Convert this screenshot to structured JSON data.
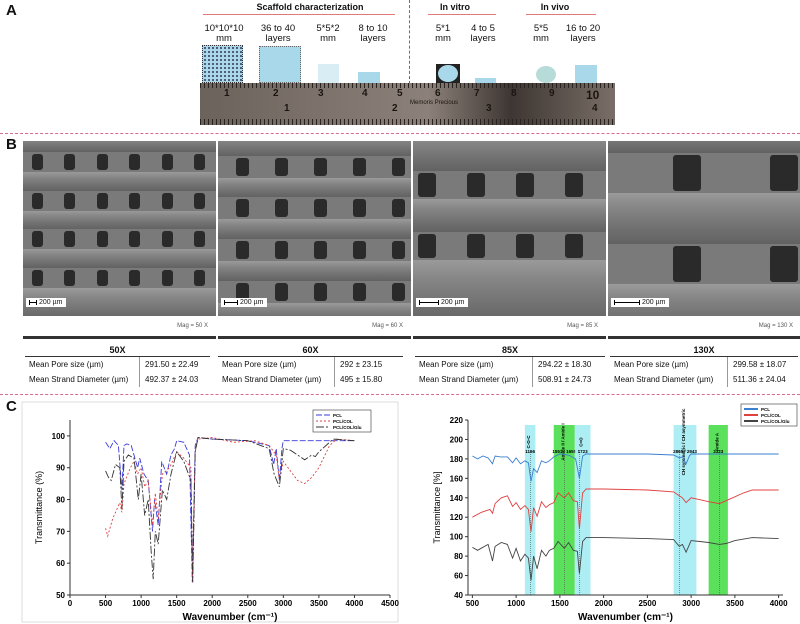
{
  "panels": {
    "a": "A",
    "b": "B",
    "c": "C"
  },
  "panel_a": {
    "groups": [
      {
        "title": "Scaffold characterization"
      },
      {
        "title": "In vitro"
      },
      {
        "title": "In vivo"
      }
    ],
    "scaffold_labels": [
      {
        "line1": "10*10*10",
        "line2": "mm"
      },
      {
        "line1": "36 to 40",
        "line2": "layers"
      },
      {
        "line1": "5*5*2",
        "line2": "mm"
      },
      {
        "line1": "8 to 10",
        "line2": "layers"
      },
      {
        "line1": "5*1",
        "line2": "mm"
      },
      {
        "line1": "4 to 5",
        "line2": "layers"
      },
      {
        "line1": "5*5",
        "line2": "mm"
      },
      {
        "line1": "16 to 20",
        "line2": "layers"
      }
    ],
    "ruler_cm": [
      "1",
      "2",
      "3",
      "4",
      "5",
      "6",
      "7",
      "8",
      "9",
      "10"
    ],
    "ruler_inch": [
      "1",
      "2",
      "3",
      "4"
    ],
    "ruler_brand": "Memoris Precious"
  },
  "panel_b": {
    "images": [
      {
        "mag": "50X",
        "scale": "200 µm",
        "info": "Mag = 50 X"
      },
      {
        "mag": "60X",
        "scale": "200 µm",
        "info": "Mag = 60 X"
      },
      {
        "mag": "85X",
        "scale": "200 µm",
        "info": "Mag = 85 X"
      },
      {
        "mag": "130X",
        "scale": "200 µm",
        "info": "Mag = 130 X"
      }
    ],
    "row_labels": {
      "pore": "Mean Pore size (µm)",
      "strand": "Mean Strand Diameter (µm)"
    },
    "tables": [
      {
        "title": "50X",
        "pore": "291.50 ± 22.49",
        "strand": "492.37 ± 24.03"
      },
      {
        "title": "60X",
        "pore": "292 ± 23.15",
        "strand": "495 ± 15.80"
      },
      {
        "title": "85X",
        "pore": "294.22 ± 18.30",
        "strand": "508.91 ± 24.73"
      },
      {
        "title": "130X",
        "pore": "299.58 ± 18.07",
        "strand": "511.36 ± 24.04"
      }
    ]
  },
  "chart_data": [
    {
      "type": "line",
      "title": "",
      "xlabel": "Wavenumber (cm⁻¹)",
      "ylabel": "Transmittance (%)",
      "xlim": [
        0,
        4500
      ],
      "ylim": [
        50,
        105
      ],
      "xticks": [
        0,
        500,
        1000,
        1500,
        2000,
        2500,
        3000,
        3500,
        4000,
        4500
      ],
      "yticks": [
        50,
        60,
        70,
        80,
        90,
        100
      ],
      "legend": "top-right",
      "series": [
        {
          "name": "PCL",
          "color": "#3a3ad8",
          "dash": "6,2",
          "x": [
            500,
            560,
            620,
            680,
            730,
            760,
            800,
            860,
            900,
            950,
            980,
            1040,
            1100,
            1160,
            1190,
            1240,
            1290,
            1360,
            1420,
            1470,
            1500,
            1600,
            1680,
            1720,
            1760,
            1800,
            2000,
            2500,
            2800,
            2865,
            2900,
            2945,
            2980,
            3000,
            3500,
            4000
          ],
          "y": [
            98,
            96,
            98.5,
            97,
            83,
            97,
            97.5,
            97,
            94,
            90,
            93,
            88,
            86,
            70,
            80,
            72,
            92,
            88,
            94,
            96,
            98.5,
            98,
            94,
            54,
            97,
            99.5,
            99,
            98.5,
            97,
            91,
            96,
            86,
            96,
            98.5,
            98.5,
            98.5
          ]
        },
        {
          "name": "PCL/COL",
          "color": "#e04040",
          "dash": "2,2",
          "x": [
            500,
            530,
            600,
            700,
            730,
            760,
            850,
            900,
            950,
            1000,
            1050,
            1100,
            1160,
            1200,
            1240,
            1300,
            1400,
            1500,
            1600,
            1700,
            1725,
            1760,
            1800,
            2000,
            2300,
            2600,
            2800,
            2900,
            2945,
            3000,
            3100,
            3200,
            3300,
            3400,
            3500,
            3650,
            3750,
            4000
          ],
          "y": [
            71,
            68.5,
            74,
            79,
            76,
            85,
            90,
            92,
            88,
            90,
            84,
            86,
            72,
            82,
            74,
            88,
            90,
            95,
            93,
            90,
            54,
            95,
            99,
            99.5,
            98,
            98.5,
            97,
            94,
            86,
            92,
            89,
            86,
            85,
            87,
            90,
            97,
            99,
            98.5
          ]
        },
        {
          "name": "PCL/COL/Glu",
          "color": "#333333",
          "dash": "8,2,2,2",
          "x": [
            500,
            540,
            580,
            640,
            700,
            730,
            760,
            820,
            900,
            960,
            1000,
            1050,
            1100,
            1140,
            1170,
            1200,
            1240,
            1300,
            1360,
            1420,
            1500,
            1600,
            1700,
            1725,
            1760,
            1800,
            2000,
            2500,
            2800,
            2870,
            2945,
            3000,
            3100,
            3200,
            3300,
            3400,
            3450,
            3500,
            3600,
            3700,
            4000
          ],
          "y": [
            89,
            87,
            86,
            91,
            90,
            77,
            92,
            94,
            93,
            80,
            88,
            75,
            80,
            64,
            55,
            70,
            66,
            83,
            80,
            88,
            95,
            92,
            86,
            54,
            95,
            99.5,
            99,
            98.5,
            96,
            88,
            84,
            96,
            95.5,
            94,
            92.5,
            94,
            93.5,
            95,
            97,
            99,
            98.5
          ]
        }
      ]
    },
    {
      "type": "line",
      "title": "",
      "xlabel": "Wavenumber (cm⁻¹)",
      "ylabel": "Transmittance [%]",
      "xlim": [
        450,
        4050
      ],
      "ylim": [
        40,
        220
      ],
      "xticks": [
        500,
        1000,
        1500,
        2000,
        2500,
        3000,
        3500,
        4000
      ],
      "yticks": [
        40,
        60,
        80,
        100,
        120,
        140,
        160,
        180,
        200,
        220
      ],
      "legend": "top-right",
      "bands": [
        {
          "from": 1100,
          "to": 1220,
          "color": "#9feaf2",
          "label": "C-O-C",
          "peak": "1166",
          "peak_x": 1166
        },
        {
          "from": 1430,
          "to": 1670,
          "color": "#3ddb3d",
          "label": "Amide II / Amide I",
          "peak": "1551 / 1655",
          "peak_x": 1551
        },
        {
          "from": 1670,
          "to": 1850,
          "color": "#9feaf2",
          "label": "C=O",
          "peak": "1723",
          "peak_x": 1723
        },
        {
          "from": 2800,
          "to": 3060,
          "color": "#9feaf2",
          "label": "CH symmetric / CH asymmetric",
          "peak": "2865 / 2943",
          "peak_x": 2865
        },
        {
          "from": 3200,
          "to": 3420,
          "color": "#3ddb3d",
          "label": "Amide A",
          "peak": "3323",
          "peak_x": 3323
        }
      ],
      "annotations": [
        "C-O-C",
        "1166",
        "Amide II",
        "Amide I",
        "1551",
        "1655",
        "C=O",
        "1723",
        "CH symmetric",
        "CH asymmetric",
        "2865",
        "2943",
        "Amide A",
        "3323"
      ],
      "series": [
        {
          "name": "PCL",
          "color": "#3a7fd0",
          "x": [
            500,
            560,
            620,
            680,
            730,
            760,
            820,
            900,
            960,
            1000,
            1050,
            1100,
            1140,
            1170,
            1200,
            1240,
            1290,
            1340,
            1380,
            1430,
            1500,
            1600,
            1680,
            1723,
            1760,
            1800,
            2000,
            2500,
            2800,
            2865,
            2900,
            2943,
            2980,
            3000,
            3500,
            4000
          ],
          "y": [
            183,
            180,
            183,
            181,
            175,
            183,
            182,
            182,
            176,
            181,
            175,
            178,
            176,
            157,
            170,
            166,
            178,
            176,
            178,
            182,
            185,
            184,
            180,
            160,
            183,
            185,
            185,
            185,
            184,
            181,
            182,
            175,
            183,
            185,
            185,
            185
          ]
        },
        {
          "name": "PCL/COL",
          "color": "#e04040",
          "x": [
            500,
            600,
            700,
            730,
            760,
            830,
            900,
            960,
            1000,
            1050,
            1100,
            1140,
            1170,
            1200,
            1240,
            1290,
            1340,
            1380,
            1430,
            1480,
            1551,
            1600,
            1655,
            1700,
            1723,
            1760,
            1800,
            2000,
            2500,
            2800,
            2865,
            2900,
            2943,
            3000,
            3100,
            3200,
            3323,
            3400,
            3500,
            3600,
            3700,
            4000
          ],
          "y": [
            120,
            125,
            128,
            124,
            134,
            140,
            142,
            131,
            135,
            128,
            132,
            128,
            105,
            130,
            121,
            136,
            130,
            133,
            135,
            145,
            140,
            145,
            137,
            136,
            108,
            145,
            149,
            149,
            148,
            146,
            142,
            140,
            135,
            140,
            138,
            136,
            134,
            137,
            141,
            145,
            148,
            148
          ]
        },
        {
          "name": "PCL/COL/Glu",
          "color": "#444444",
          "x": [
            500,
            560,
            600,
            680,
            730,
            760,
            830,
            900,
            960,
            1000,
            1050,
            1100,
            1140,
            1170,
            1200,
            1240,
            1290,
            1340,
            1380,
            1430,
            1480,
            1551,
            1600,
            1655,
            1700,
            1723,
            1760,
            1800,
            2000,
            2500,
            2800,
            2865,
            2900,
            2943,
            3000,
            3100,
            3200,
            3323,
            3400,
            3500,
            3700,
            4000
          ],
          "y": [
            89,
            86,
            88,
            92,
            75,
            90,
            94,
            92,
            78,
            88,
            75,
            82,
            78,
            55,
            80,
            67,
            86,
            80,
            86,
            88,
            95,
            88,
            94,
            86,
            85,
            62,
            95,
            99,
            99,
            98,
            97,
            90,
            92,
            84,
            96,
            95,
            94,
            92,
            93,
            96,
            99,
            98
          ]
        }
      ]
    }
  ]
}
